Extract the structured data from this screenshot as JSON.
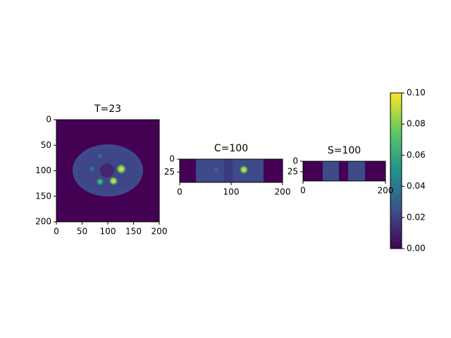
{
  "chart_data": [
    {
      "type": "image",
      "title": "T=23",
      "xlim": [
        0,
        200
      ],
      "ylim": [
        200,
        0
      ],
      "xticks": [
        0,
        50,
        100,
        150,
        200
      ],
      "yticks": [
        0,
        50,
        100,
        150,
        200
      ]
    },
    {
      "type": "image",
      "title": "C=100",
      "xlim": [
        0,
        200
      ],
      "ylim": [
        45,
        0
      ],
      "xticks": [
        0,
        100,
        200
      ],
      "yticks": [
        0,
        25
      ]
    },
    {
      "type": "image",
      "title": "S=100",
      "xlim": [
        0,
        200
      ],
      "ylim": [
        47,
        0
      ],
      "xticks": [
        0,
        200
      ],
      "yticks": [
        0,
        25
      ]
    },
    {
      "type": "colorbar",
      "ylim": [
        0,
        0.1
      ],
      "yticks": [
        {
          "value": 0,
          "label": "0.00"
        },
        {
          "value": 0.02,
          "label": "0.02"
        },
        {
          "value": 0.04,
          "label": "0.04"
        },
        {
          "value": 0.06,
          "label": "0.06"
        },
        {
          "value": 0.08,
          "label": "0.08"
        },
        {
          "value": 0.1,
          "label": "0.10"
        }
      ]
    }
  ]
}
